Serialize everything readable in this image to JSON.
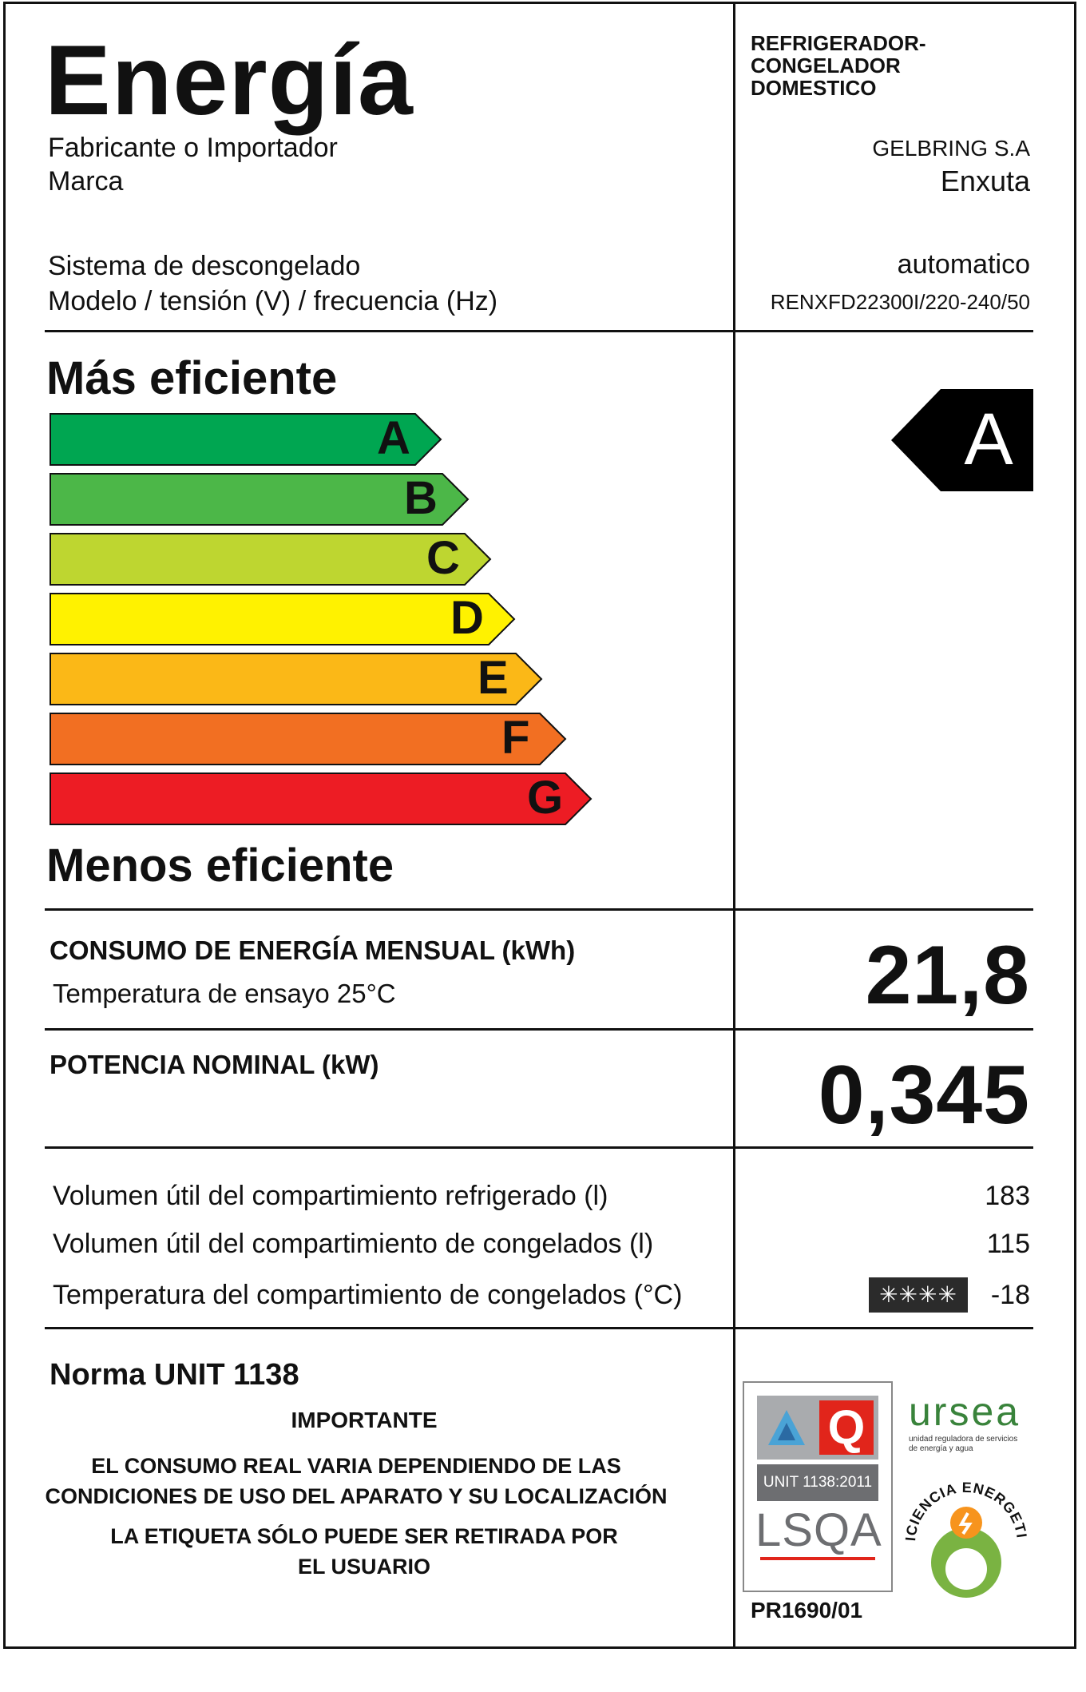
{
  "header": {
    "title": "Energía",
    "category": "REFRIGERADOR-\nCONGELADOR\nDOMESTICO",
    "manufacturer_label": "Fabricante o Importador",
    "manufacturer_value": "GELBRING S.A",
    "brand_label": "Marca",
    "brand_value": "Enxuta",
    "defrost_label": "Sistema de descongelado",
    "defrost_value": "automatico",
    "model_label": "Modelo / tensión (V) / frecuencia (Hz)",
    "model_value": "RENXFD22300I/220-240/50"
  },
  "scale": {
    "top_label": "Más eficiente",
    "bottom_label": "Menos eficiente",
    "classes": [
      {
        "letter": "A",
        "color": "#00a651"
      },
      {
        "letter": "B",
        "color": "#4cb748"
      },
      {
        "letter": "C",
        "color": "#bed630"
      },
      {
        "letter": "D",
        "color": "#fff200"
      },
      {
        "letter": "E",
        "color": "#fbb817"
      },
      {
        "letter": "F",
        "color": "#f26f22"
      },
      {
        "letter": "G",
        "color": "#ed1c24"
      }
    ],
    "rating": "A"
  },
  "consumption": {
    "label": "CONSUMO DE ENERGÍA MENSUAL (kWh)",
    "sublabel": "Temperatura de ensayo 25°C",
    "value": "21,8"
  },
  "power": {
    "label": "POTENCIA NOMINAL (kW)",
    "value": "0,345"
  },
  "volumes": {
    "fridge_label": "Volumen útil del compartimiento refrigerado (l)",
    "fridge_value": "183",
    "freezer_label": "Volumen útil del compartimiento de congelados (l)",
    "freezer_value": "115",
    "temp_label": "Temperatura del compartimiento de congelados (°C)",
    "temp_stars": "✳✳✳✳",
    "temp_value": "-18"
  },
  "footer": {
    "norm": "Norma UNIT 1138",
    "important": "IMPORTANTE",
    "notice1": "EL CONSUMO REAL VARIA DEPENDIENDO DE LAS CONDICIONES DE USO DEL APARATO Y SU LOCALIZACIÓN",
    "notice2": "LA ETIQUETA SÓLO PUEDE SER RETIRADA POR EL USUARIO",
    "cert_unit": "UNIT 1138:2011",
    "cert_lsqa": "LSQA",
    "cert_q": "Q",
    "cert_code": "PR1690/01",
    "ursea_name": "ursea",
    "ursea_sub": "unidad reguladora de servicios de energía y agua",
    "ee_seal": "EFICIENCIA ENERGETICA"
  }
}
